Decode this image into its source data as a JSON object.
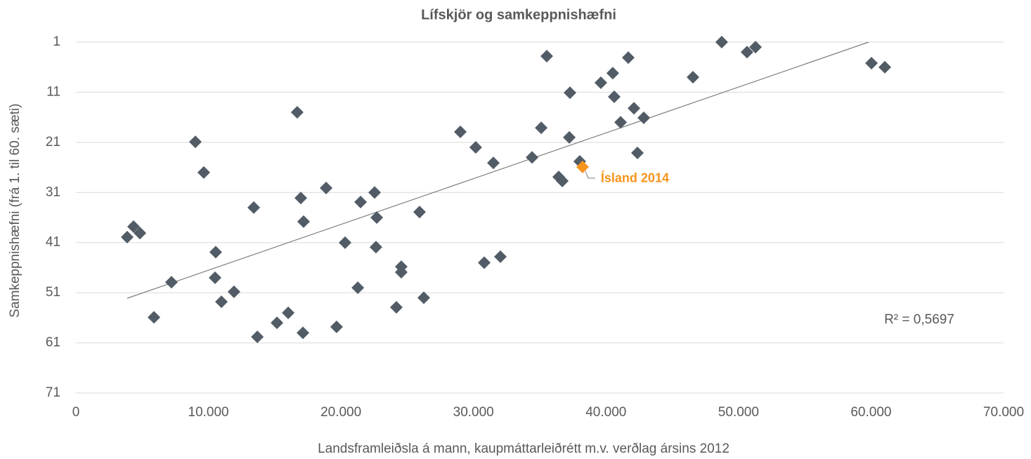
{
  "chart_data": {
    "type": "scatter",
    "title": "Lífskjör og samkeppnishæfni",
    "xlabel": "Landsframleiðsla á mann, kaupmáttarleiðrétt m.v. verðlag ársins 2012",
    "ylabel": "Samkeppnishæfni (frá 1. til 60. sæti)",
    "xlim": [
      0,
      70000
    ],
    "xticks": [
      0,
      {
        "value": 10000,
        "label": "10.000"
      },
      {
        "value": 20000,
        "label": "20.000"
      },
      {
        "value": 30000,
        "label": "30.000"
      },
      {
        "value": 40000,
        "label": "40.000"
      },
      {
        "value": 50000,
        "label": "50.000"
      },
      {
        "value": 60000,
        "label": "60.000"
      },
      {
        "value": 70000,
        "label": "70.000"
      }
    ],
    "ylim": [
      1,
      71
    ],
    "yticks": [
      1,
      11,
      21,
      31,
      41,
      51,
      61,
      71
    ],
    "y_inverted": true,
    "grid": true,
    "series": [
      {
        "color": "#525c66",
        "x": [
          3870,
          4350,
          4830,
          5890,
          7210,
          9015,
          9650,
          10550,
          10500,
          10980,
          11930,
          13420,
          13690,
          15170,
          16020,
          16700,
          16970,
          17180,
          17130,
          18880,
          19670,
          20310,
          21270,
          21480,
          22540,
          22700,
          22640,
          24180,
          24550,
          24550,
          25930,
          26250,
          29010,
          30170,
          30810,
          31500,
          32030,
          34420,
          35110,
          35530,
          36430,
          36700,
          37230,
          37280,
          38020,
          39610,
          40510,
          40620,
          41100,
          41680,
          42110,
          42370,
          42850,
          46560,
          48730,
          50640,
          51280,
          60030,
          61040
        ],
        "values": [
          39.9,
          37.8,
          39.1,
          55.9,
          48.9,
          20.9,
          27.0,
          42.9,
          48.0,
          52.8,
          50.8,
          34.0,
          59.8,
          57.0,
          55.0,
          15.0,
          32.1,
          36.8,
          59.0,
          30.1,
          57.8,
          41.0,
          50.0,
          32.9,
          31.0,
          36.0,
          41.9,
          53.9,
          45.8,
          46.9,
          34.9,
          52.0,
          18.9,
          22.0,
          45.0,
          25.1,
          43.8,
          24.0,
          18.1,
          3.8,
          27.9,
          28.7,
          20.0,
          11.1,
          24.8,
          9.1,
          7.2,
          11.9,
          17.0,
          4.1,
          14.2,
          23.1,
          16.1,
          8.0,
          1.0,
          3.0,
          2.0,
          5.2,
          6.0
        ]
      },
      {
        "name": "Ísland 2014",
        "color": "#f7941d",
        "x": [
          38230
        ],
        "values": [
          25.9
        ]
      }
    ],
    "trendline": {
      "color": "#7f7f7f",
      "x": [
        3870,
        59820
      ],
      "values": [
        52.1,
        1.0
      ]
    },
    "r_squared_label": "R² = 0,5697"
  }
}
